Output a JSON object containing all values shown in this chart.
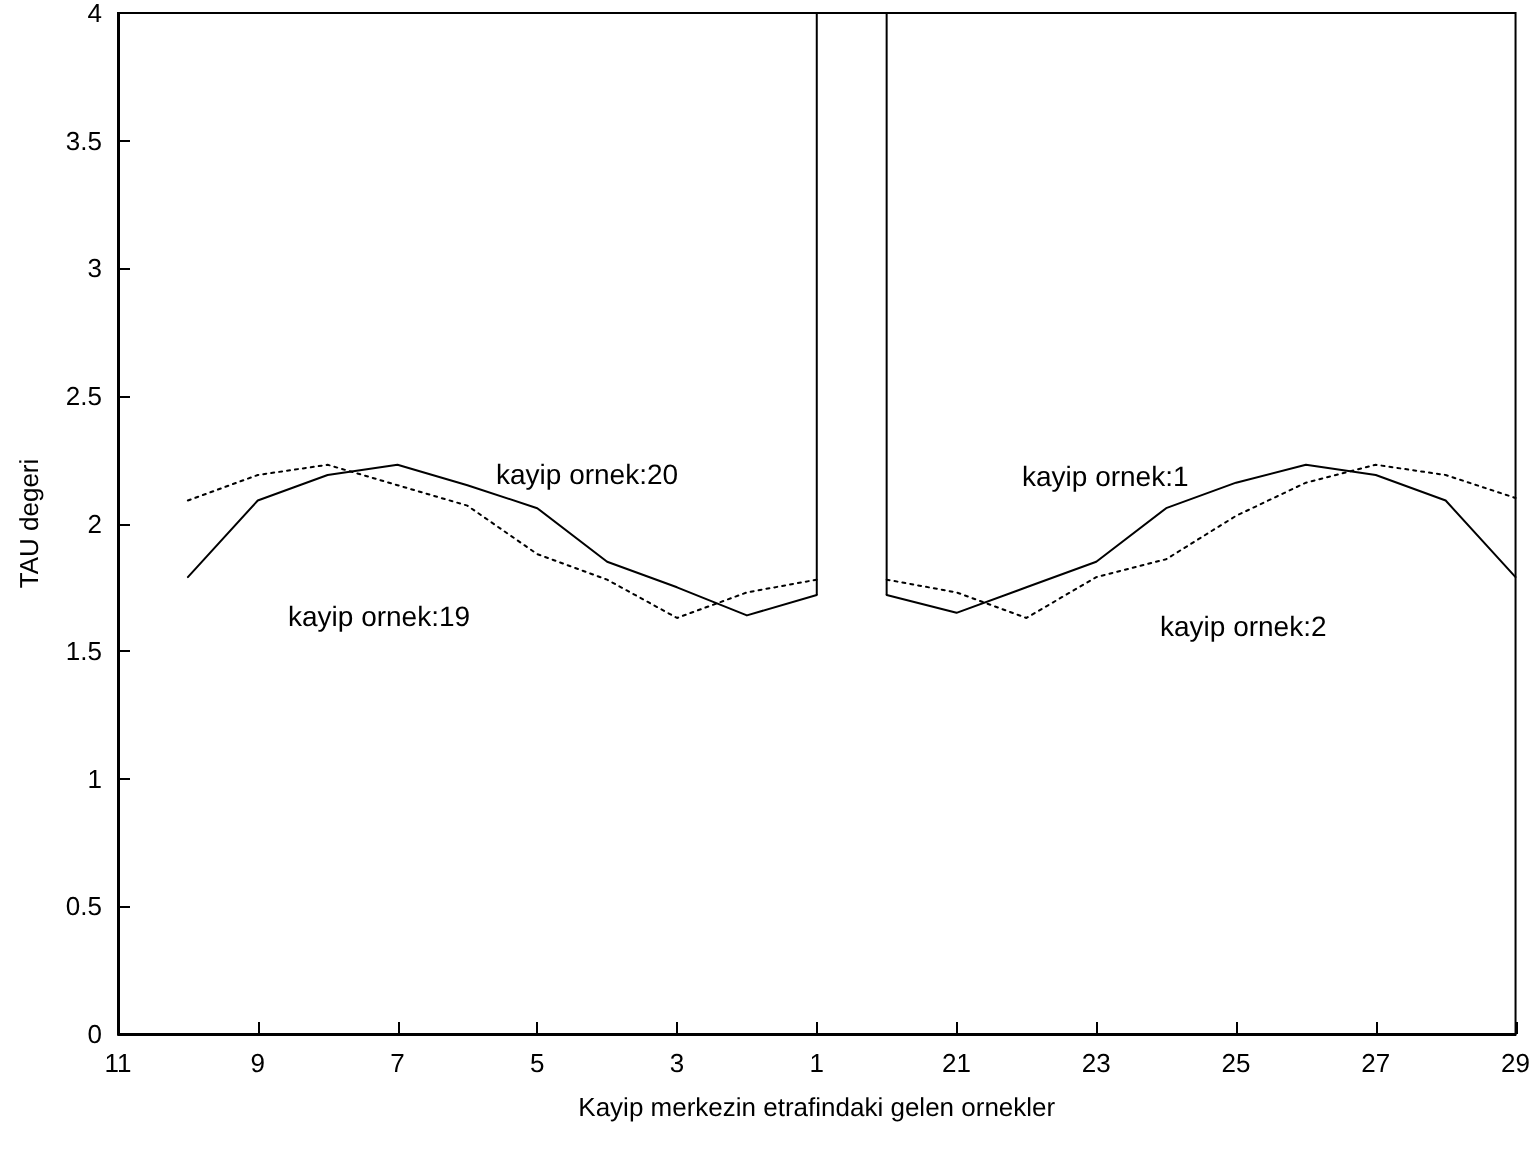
{
  "chart_data": {
    "type": "line",
    "xlabel": "Kayip merkezin etrafindaki gelen ornekler",
    "ylabel": "TAU degeri",
    "categories": [
      "11",
      null,
      "9",
      null,
      "7",
      null,
      "5",
      null,
      "3",
      null,
      "1",
      null,
      "21",
      null,
      "23",
      null,
      "25",
      null,
      "27",
      null,
      "29"
    ],
    "ylim": [
      0,
      4
    ],
    "yticks": [
      0,
      0.5,
      1,
      1.5,
      2,
      2.5,
      3,
      3.5,
      4
    ],
    "marker": "none",
    "grid": false,
    "series": [
      {
        "color": "#000000",
        "line_style": "solid",
        "values": [
          null,
          1.79,
          2.09,
          2.19,
          2.23,
          2.15,
          2.06,
          1.85,
          1.75,
          1.64,
          1.72,
          null,
          null,
          null,
          null,
          null,
          null,
          null,
          null,
          null,
          null
        ],
        "errors": [
          null,
          null,
          null,
          null,
          null,
          null,
          null,
          null,
          null,
          null,
          [
            1.72,
            4
          ],
          null,
          null,
          null,
          null,
          null,
          null,
          null,
          null,
          null,
          null
        ]
      },
      {
        "color": "#000000",
        "line_style": "solid",
        "values": [
          null,
          null,
          null,
          null,
          null,
          null,
          null,
          null,
          null,
          null,
          null,
          1.72,
          1.65,
          1.75,
          1.85,
          2.06,
          2.16,
          2.23,
          2.19,
          2.09,
          1.79
        ],
        "errors": [
          null,
          null,
          null,
          null,
          null,
          null,
          null,
          null,
          null,
          null,
          null,
          [
            1.72,
            4
          ],
          null,
          null,
          null,
          null,
          null,
          null,
          null,
          null,
          null
        ]
      },
      {
        "color": "#000000",
        "line_style": "dotted",
        "values": [
          null,
          2.09,
          2.19,
          2.23,
          2.15,
          2.07,
          1.88,
          1.78,
          1.63,
          1.73,
          1.78,
          null,
          null,
          null,
          null,
          null,
          null,
          null,
          null,
          null,
          null
        ]
      },
      {
        "color": "#000000",
        "line_style": "dotted",
        "values": [
          null,
          null,
          null,
          null,
          null,
          null,
          null,
          null,
          null,
          null,
          null,
          1.78,
          1.73,
          1.63,
          1.79,
          1.86,
          2.03,
          2.16,
          2.23,
          2.19,
          2.1
        ]
      }
    ],
    "annotations": [
      "kayip ornek:20",
      "kayip ornek:19",
      "kayip ornek:1",
      "kayip ornek:2"
    ]
  }
}
